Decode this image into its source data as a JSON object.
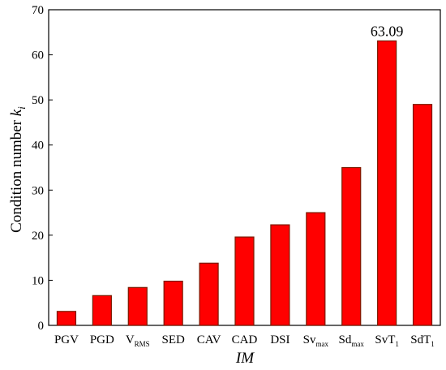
{
  "chart_data": {
    "type": "bar",
    "title": "",
    "xlabel": "IM",
    "ylabel_main": "Condition number ",
    "ylabel_var": "k",
    "ylabel_sub": "i",
    "ylim": [
      0,
      70
    ],
    "yticks": [
      0,
      10,
      20,
      30,
      40,
      50,
      60,
      70
    ],
    "grid": false,
    "legend": "none",
    "bar_color": "#ff0000",
    "bar_edge_color": "#7a1a00",
    "categories": [
      {
        "main": "PGV",
        "sub": ""
      },
      {
        "main": "PGD",
        "sub": ""
      },
      {
        "main": "V",
        "sub": "RMS"
      },
      {
        "main": "SED",
        "sub": ""
      },
      {
        "main": "CAV",
        "sub": ""
      },
      {
        "main": "CAD",
        "sub": ""
      },
      {
        "main": "DSI",
        "sub": ""
      },
      {
        "main": "Sv",
        "sub": "max"
      },
      {
        "main": "Sd",
        "sub": "max"
      },
      {
        "main": "SvT",
        "sub": "1"
      },
      {
        "main": "SdT",
        "sub": "1"
      }
    ],
    "values": [
      3.1,
      6.6,
      8.4,
      9.8,
      13.8,
      19.6,
      22.3,
      25.0,
      35.0,
      63.09,
      49.0
    ],
    "annotations": [
      {
        "category_index": 9,
        "text": "63.09"
      }
    ]
  }
}
